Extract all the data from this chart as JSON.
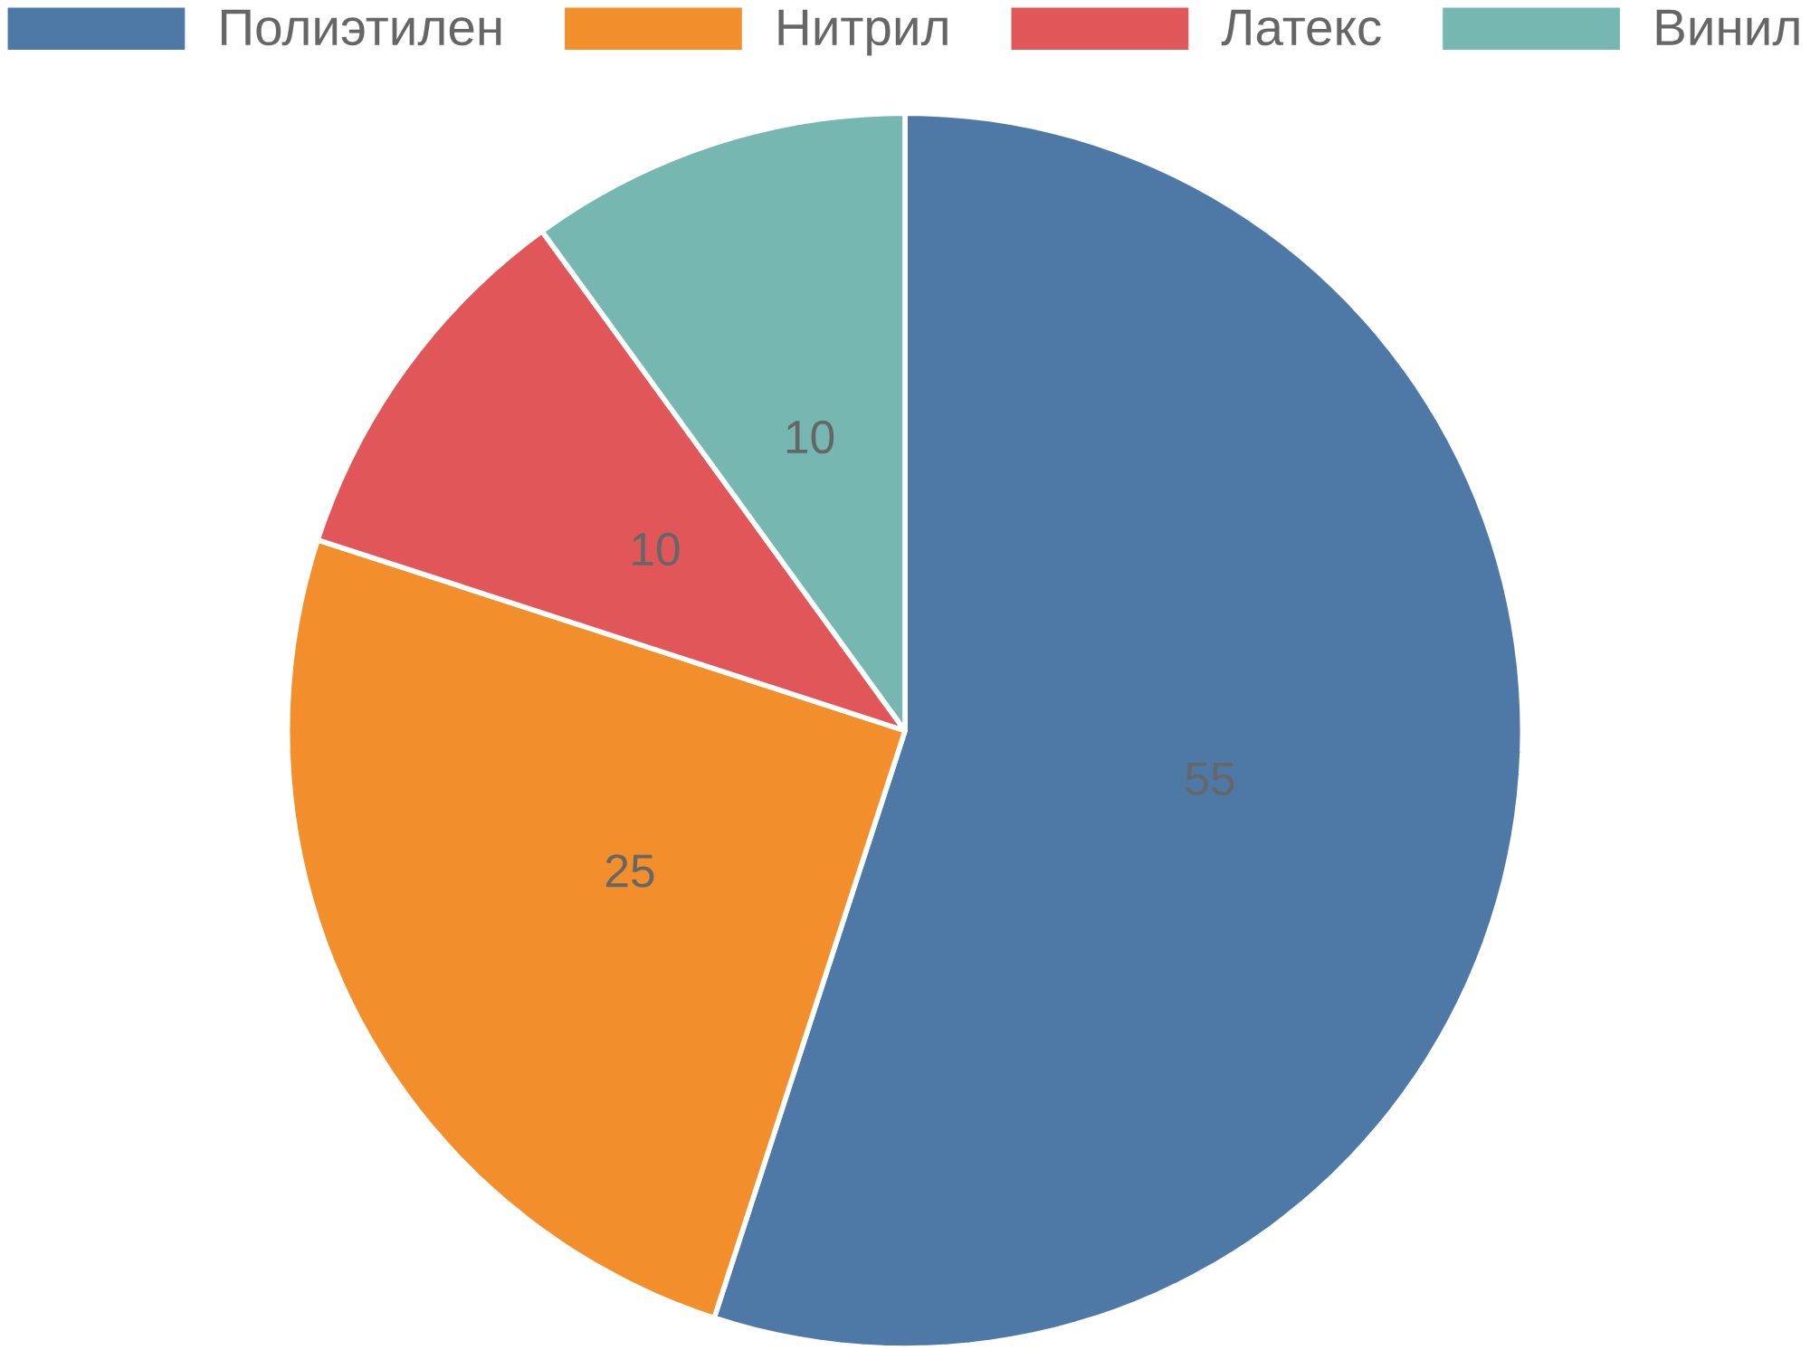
{
  "chart_data": {
    "type": "pie",
    "categories": [
      "Полиэтилен",
      "Нитрил",
      "Латекс",
      "Винил"
    ],
    "values": [
      55,
      25,
      10,
      10
    ],
    "colors": [
      "#4e79a7",
      "#f28e2b",
      "#e15759",
      "#76b7b2"
    ],
    "data_labels": true,
    "legend": "top"
  }
}
